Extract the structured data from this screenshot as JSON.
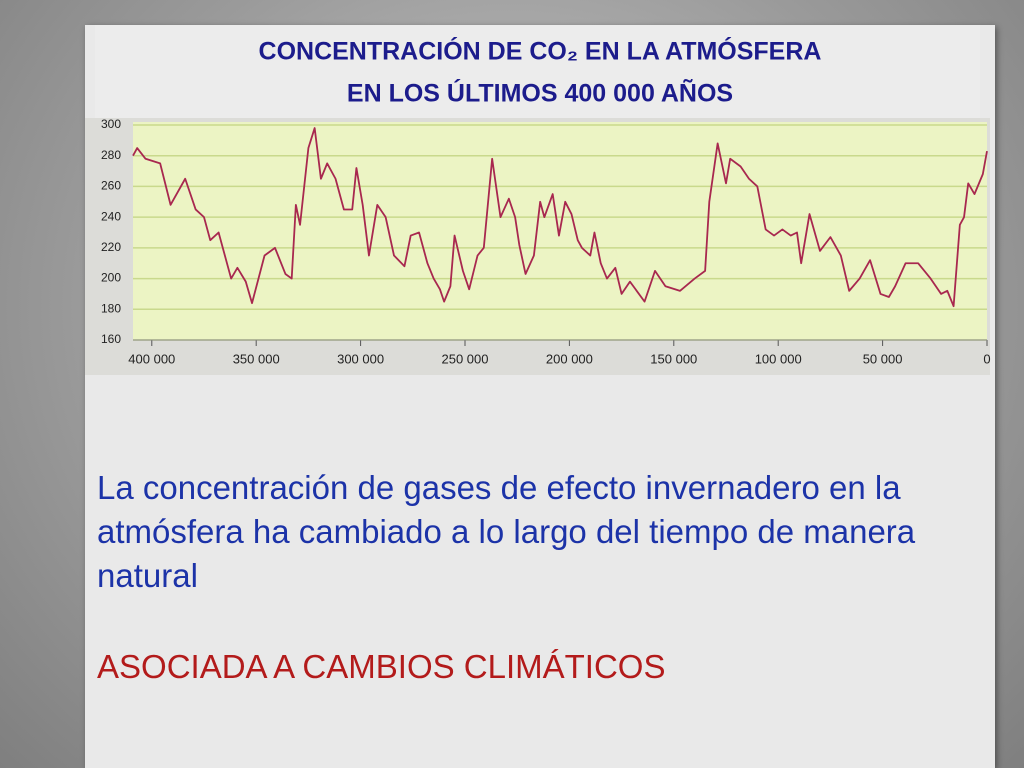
{
  "chart_data": {
    "type": "line",
    "title": "CONCENTRACIÓN DE CO₂ EN LA ATMÓSFERA",
    "subtitle": "EN LOS ÚLTIMOS 400 000 AÑOS",
    "x": [
      409000,
      407000,
      403000,
      396000,
      391000,
      384000,
      379000,
      375000,
      372000,
      368000,
      362000,
      359000,
      355000,
      352000,
      346000,
      341000,
      336000,
      333000,
      331000,
      329000,
      325000,
      322000,
      319000,
      316000,
      312000,
      308000,
      304000,
      302000,
      299000,
      296000,
      292000,
      288000,
      284000,
      279000,
      276000,
      272000,
      268000,
      265000,
      262000,
      260000,
      257000,
      255000,
      251000,
      248000,
      244000,
      241000,
      237000,
      233000,
      229000,
      226000,
      224000,
      221000,
      217000,
      214000,
      212000,
      208000,
      205000,
      202000,
      199000,
      196000,
      194000,
      190000,
      188000,
      185000,
      182000,
      178000,
      175000,
      171000,
      164000,
      159000,
      154000,
      147000,
      140000,
      135000,
      133000,
      129000,
      125000,
      123000,
      118000,
      114000,
      110000,
      106000,
      102000,
      98000,
      94000,
      91000,
      89000,
      85000,
      80000,
      75000,
      70000,
      66000,
      61000,
      56000,
      51000,
      47000,
      44000,
      39000,
      33000,
      27000,
      22000,
      19000,
      16000,
      13000,
      11000,
      9000,
      6000,
      2000,
      0
    ],
    "series": [
      {
        "name": "CO₂",
        "color": "#a8284f",
        "values": [
          280,
          285,
          278,
          275,
          248,
          265,
          245,
          240,
          225,
          230,
          200,
          207,
          198,
          184,
          215,
          220,
          203,
          200,
          248,
          235,
          285,
          298,
          265,
          275,
          265,
          245,
          245,
          272,
          248,
          215,
          248,
          240,
          215,
          208,
          228,
          230,
          210,
          200,
          193,
          185,
          195,
          228,
          205,
          193,
          215,
          220,
          278,
          240,
          252,
          240,
          222,
          203,
          215,
          250,
          240,
          255,
          228,
          250,
          242,
          225,
          220,
          215,
          230,
          210,
          200,
          207,
          190,
          198,
          185,
          205,
          195,
          192,
          200,
          205,
          250,
          288,
          262,
          278,
          273,
          265,
          260,
          232,
          228,
          232,
          228,
          230,
          210,
          242,
          218,
          227,
          215,
          192,
          200,
          212,
          190,
          188,
          195,
          210,
          210,
          200,
          190,
          192,
          182,
          235,
          240,
          262,
          255,
          268,
          283
        ]
      }
    ],
    "xlim": [
      409000,
      0
    ],
    "ylim": [
      160,
      300
    ],
    "xticks": [
      {
        "value": 400000,
        "label": "400 000"
      },
      {
        "value": 350000,
        "label": "350 000"
      },
      {
        "value": 300000,
        "label": "300 000"
      },
      {
        "value": 250000,
        "label": "250 000"
      },
      {
        "value": 200000,
        "label": "200 000"
      },
      {
        "value": 150000,
        "label": "150 000"
      },
      {
        "value": 100000,
        "label": "100 000"
      },
      {
        "value": 50000,
        "label": "50 000"
      },
      0
    ],
    "yticks": [
      160,
      180,
      200,
      220,
      240,
      260,
      280,
      300
    ],
    "grid": true
  },
  "slide": {
    "text": "La concentración de gases de efecto invernadero en la atmósfera ha cambiado a lo largo del tiempo de manera natural",
    "highlight": "ASOCIADA A CAMBIOS CLIMÁTICOS"
  }
}
